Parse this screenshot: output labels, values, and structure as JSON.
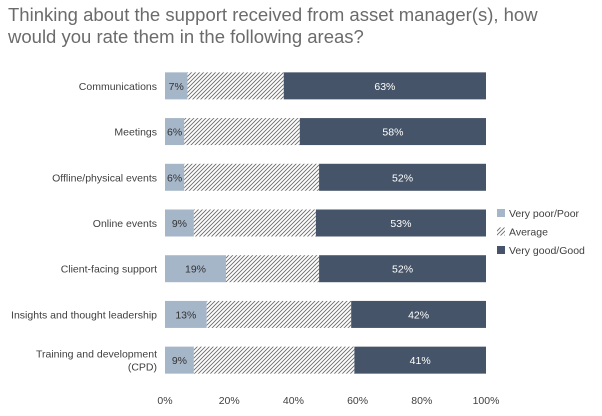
{
  "title_lines": [
    "Thinking about the support received from asset manager(s), how",
    "would you rate them in the following areas?"
  ],
  "chart_data": {
    "type": "bar",
    "orientation": "horizontal",
    "stacked": "percent",
    "title": "Thinking about the support received from asset manager(s), how would you rate them in the following areas?",
    "categories": [
      [
        "Communications"
      ],
      [
        "Meetings"
      ],
      [
        "Offline/physical events"
      ],
      [
        "Online events"
      ],
      [
        "Client-facing support"
      ],
      [
        "Insights and thought leadership"
      ],
      [
        "Training and development",
        "(CPD)"
      ]
    ],
    "series": [
      {
        "name": "Very poor/Poor",
        "values": [
          7,
          6,
          6,
          9,
          19,
          13,
          9
        ],
        "labels": [
          "7%",
          "6%",
          "6%",
          "9%",
          "19%",
          "13%",
          "9%"
        ],
        "color": "#a6b6c9",
        "label_color": "#333333"
      },
      {
        "name": "Average",
        "values": [
          30,
          36,
          42,
          38,
          29,
          45,
          50
        ],
        "labels": [],
        "color": "#ffffff",
        "pattern": "diagonal-hatch",
        "hatch_color": "#6b6b6b"
      },
      {
        "name": "Very good/Good",
        "values": [
          63,
          58,
          52,
          53,
          52,
          42,
          41
        ],
        "labels": [
          "63%",
          "58%",
          "52%",
          "53%",
          "52%",
          "42%",
          "41%"
        ],
        "color": "#455468",
        "label_color": "#ffffff"
      }
    ],
    "xlim": [
      0,
      100
    ],
    "xticks": [
      0,
      20,
      40,
      60,
      80,
      100
    ],
    "xtick_labels": [
      "0%",
      "20%",
      "40%",
      "60%",
      "80%",
      "100%"
    ],
    "grid": false,
    "legend_position": "right"
  }
}
